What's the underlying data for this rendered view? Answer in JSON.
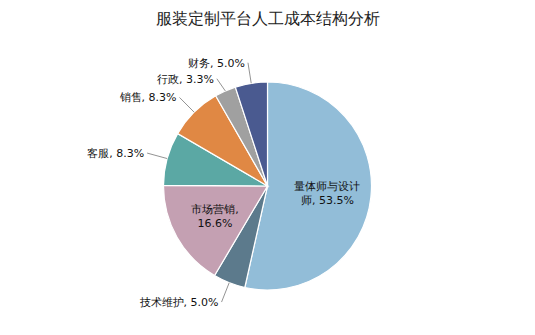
{
  "chart_data": {
    "type": "pie",
    "title": "服装定制平台人工成本结构分析",
    "values": [
      53.5,
      5.0,
      16.6,
      8.3,
      8.3,
      3.3,
      5.0
    ],
    "value_labels": [
      "量体师与设计\n师, 53.5%",
      "技术维护, 5.0%",
      "市场营销,\n16.6%",
      "客服, 8.3%",
      "销售, 8.3%",
      "行政, 3.3%",
      "财务, 5.0%"
    ],
    "colors": [
      "#92BDD8",
      "#5C7A8C",
      "#C4A0B2",
      "#5BA8A4",
      "#E08844",
      "#A0A0A0",
      "#4A5A90"
    ]
  }
}
